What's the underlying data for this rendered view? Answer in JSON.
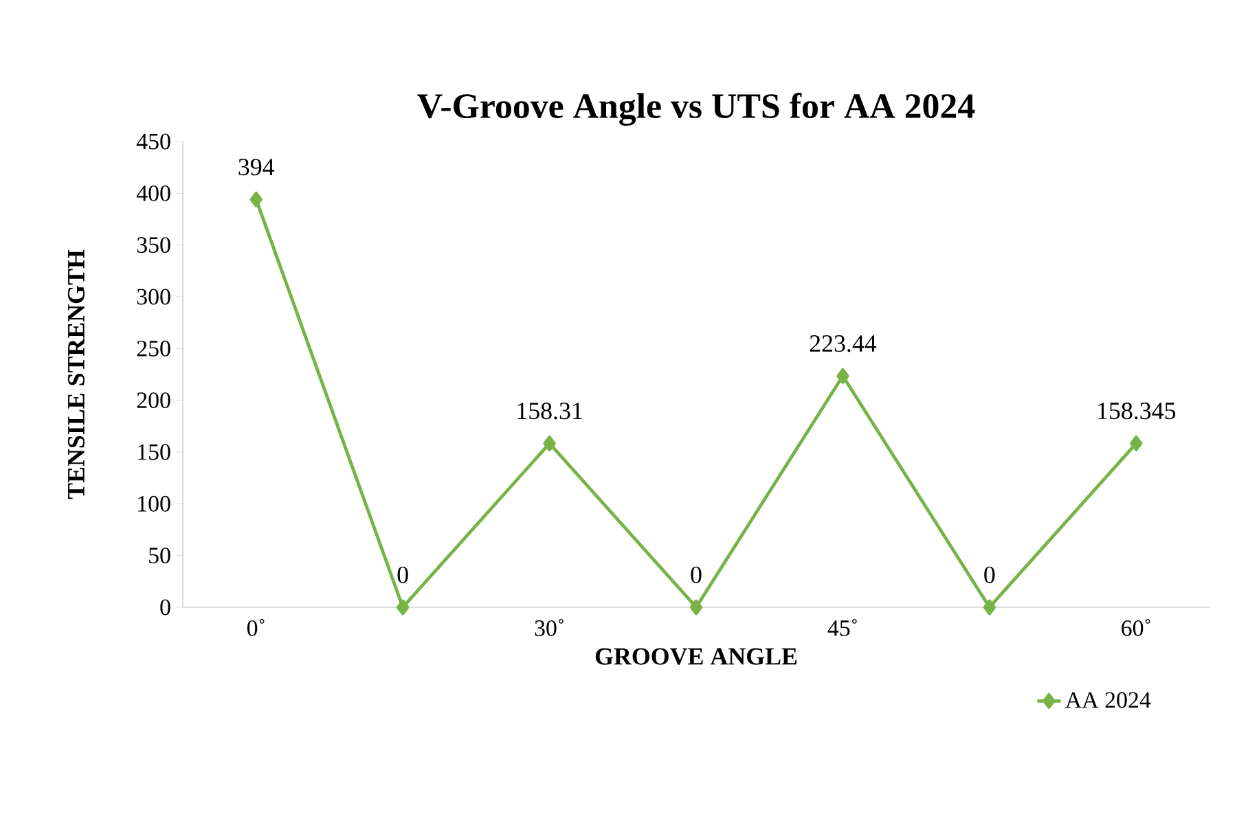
{
  "chart_data": {
    "type": "line",
    "title": "V-Groove Angle vs UTS for AA 2024",
    "xlabel": "GROOVE ANGLE",
    "ylabel": "TENSILE STRENGTH",
    "categories": [
      "0˚",
      null,
      "30˚",
      null,
      "45˚",
      null,
      "60˚"
    ],
    "series": [
      {
        "name": "AA 2024",
        "color": "#77b347",
        "values": [
          394,
          0,
          158.31,
          0,
          223.44,
          0,
          158.345
        ]
      }
    ],
    "ylim": [
      0,
      450
    ],
    "yticks": [
      0,
      50,
      100,
      150,
      200,
      250,
      300,
      350,
      400,
      450
    ],
    "data_labels": true,
    "legend": "bottom right",
    "marker": "diamond",
    "line_style": "solid",
    "grid": false
  }
}
